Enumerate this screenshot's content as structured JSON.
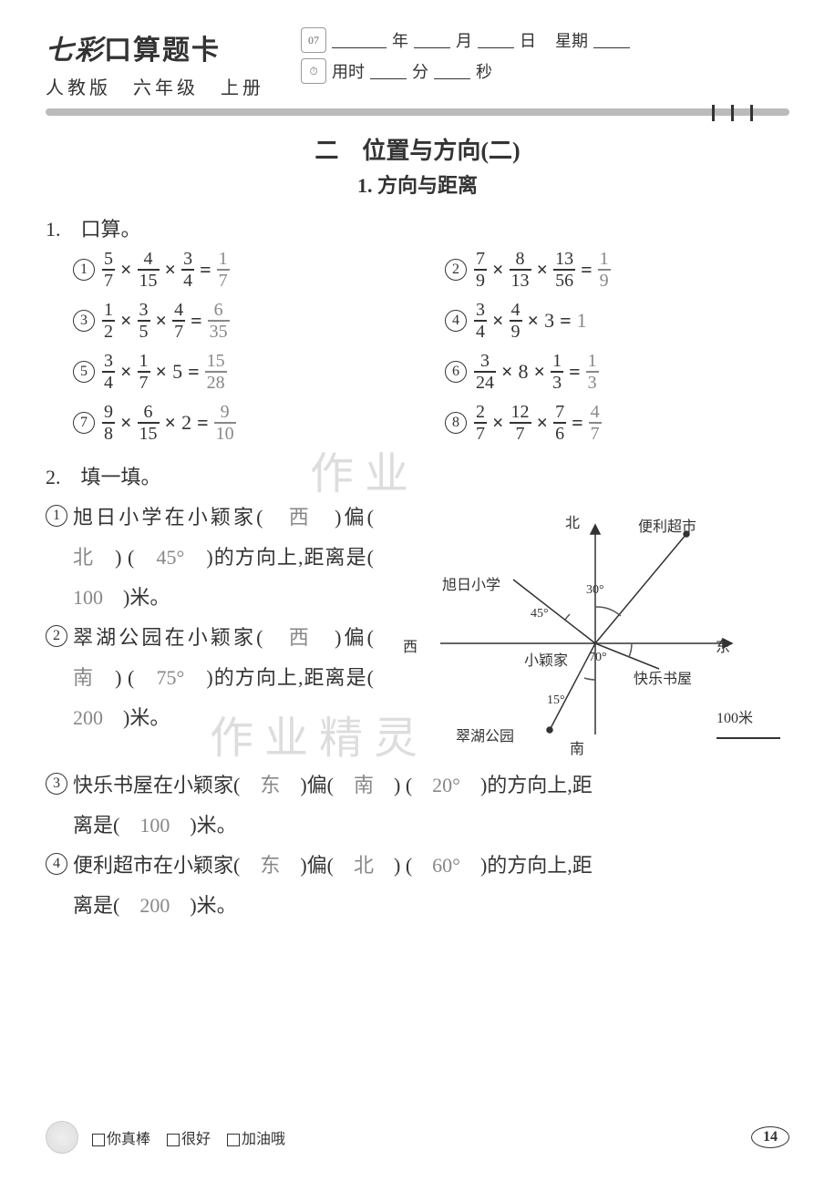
{
  "header": {
    "title_prefix": "七彩",
    "title_main": "口算题卡",
    "subtitle": "人教版　六年级　上册",
    "cal_text": "07",
    "date_labels": {
      "year": "年",
      "month": "月",
      "day": "日",
      "weekday": "星期"
    },
    "time_labels": {
      "prefix": "用时",
      "min": "分",
      "sec": "秒"
    }
  },
  "chapter": {
    "title": "二　位置与方向(二)",
    "section": "1. 方向与距离"
  },
  "q1": {
    "heading": "1.　口算。",
    "problems": [
      {
        "n": "1",
        "f": [
          [
            "5",
            "7"
          ],
          [
            "4",
            "15"
          ],
          [
            "3",
            "4"
          ]
        ],
        "ans_frac": [
          "1",
          "7"
        ]
      },
      {
        "n": "2",
        "f": [
          [
            "7",
            "9"
          ],
          [
            "8",
            "13"
          ],
          [
            "13",
            "56"
          ]
        ],
        "ans_frac": [
          "1",
          "9"
        ]
      },
      {
        "n": "3",
        "f": [
          [
            "1",
            "2"
          ],
          [
            "3",
            "5"
          ],
          [
            "4",
            "7"
          ]
        ],
        "ans_frac": [
          "6",
          "35"
        ]
      },
      {
        "n": "4",
        "f": [
          [
            "3",
            "4"
          ],
          [
            "4",
            "9"
          ]
        ],
        "tail_int": "3",
        "ans_int": "1"
      },
      {
        "n": "5",
        "f": [
          [
            "3",
            "4"
          ],
          [
            "1",
            "7"
          ]
        ],
        "tail_int": "5",
        "ans_frac": [
          "15",
          "28"
        ]
      },
      {
        "n": "6",
        "lead": [
          "3",
          "24"
        ],
        "mid_int": "8",
        "tail_frac": [
          "1",
          "3"
        ],
        "ans_frac": [
          "1",
          "3"
        ]
      },
      {
        "n": "7",
        "f": [
          [
            "9",
            "8"
          ],
          [
            "6",
            "15"
          ]
        ],
        "tail_int": "2",
        "ans_frac": [
          "9",
          "10"
        ]
      },
      {
        "n": "8",
        "f": [
          [
            "2",
            "7"
          ],
          [
            "12",
            "7"
          ],
          [
            "7",
            "6"
          ]
        ],
        "ans_frac": [
          "4",
          "7"
        ]
      }
    ]
  },
  "q2": {
    "heading": "2.　填一填。",
    "items_left": [
      {
        "n": "1",
        "subject": "旭日小学在小颖家",
        "a1": "西",
        "mid1": "偏",
        "a2": "北",
        "a3": "45°",
        "line2": "的方向上,距离是",
        "a4": "100",
        "line3": "米。"
      },
      {
        "n": "2",
        "subject": "翠湖公园在小颖家",
        "a1": "西",
        "mid1": "偏",
        "a2": "南",
        "a3": "75°",
        "line2": "的方向上,距离是",
        "a4": "200",
        "line3": "米。"
      }
    ],
    "items_full": [
      {
        "n": "3",
        "pre": "快乐书屋在小颖家",
        "a1": "东",
        "mid1": "偏",
        "a2": "南",
        "a3": "20°",
        "mid2": "的方向上,距",
        "line2": "离是",
        "a4": "100",
        "tail": "米。"
      },
      {
        "n": "4",
        "pre": "便利超市在小颖家",
        "a1": "东",
        "mid1": "偏",
        "a2": "北",
        "a3": "60°",
        "mid2": "的方向上,距",
        "line2": "离是",
        "a4": "200",
        "tail": "米。"
      }
    ]
  },
  "diagram": {
    "labels": {
      "north": "北",
      "south": "南",
      "east": "东",
      "west": "西",
      "home": "小颖家",
      "school": "旭日小学",
      "store": "便利超市",
      "bookstore": "快乐书屋",
      "park": "翠湖公园"
    },
    "angles": {
      "a30": "30°",
      "a45": "45°",
      "a70": "70°",
      "a15": "15°"
    },
    "scale": "100米",
    "colors": {
      "line": "#333333",
      "arc": "#555555"
    }
  },
  "watermark": {
    "t1": "作 业",
    "t2": "作 业 精 灵"
  },
  "footer": {
    "opts": [
      "你真棒",
      "很好",
      "加油哦"
    ],
    "page": "14"
  }
}
